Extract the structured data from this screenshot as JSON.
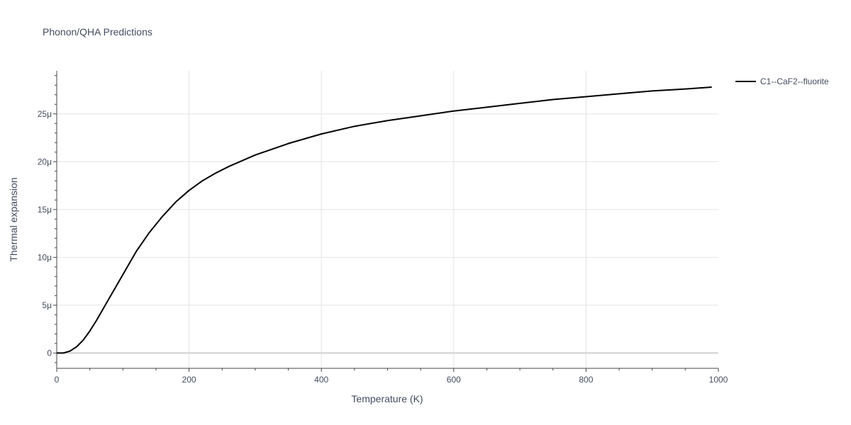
{
  "chart_data": {
    "type": "line",
    "title": "Phonon/QHA Predictions",
    "xlabel": "Temperature (K)",
    "ylabel": "Thermal expansion",
    "xlim": [
      0,
      1000
    ],
    "ylim": [
      -1.6e-06,
      2.95e-05
    ],
    "x_ticks": [
      0,
      200,
      400,
      600,
      800,
      1000
    ],
    "x_tick_labels": [
      "0",
      "200",
      "400",
      "600",
      "800",
      "1000"
    ],
    "y_ticks": [
      0,
      5e-06,
      1e-05,
      1.5e-05,
      2e-05,
      2.5e-05
    ],
    "y_tick_labels": [
      "0",
      "5μ",
      "10μ",
      "15μ",
      "20μ",
      "25μ"
    ],
    "grid": true,
    "legend_position": "top-right",
    "series": [
      {
        "name": "C1--CaF2--fluorite",
        "color": "#000000",
        "x": [
          0,
          10,
          20,
          30,
          40,
          50,
          60,
          70,
          80,
          90,
          100,
          120,
          140,
          160,
          180,
          200,
          220,
          240,
          260,
          280,
          300,
          350,
          400,
          450,
          500,
          550,
          600,
          650,
          700,
          750,
          800,
          850,
          900,
          950,
          990
        ],
        "y": [
          0,
          0.0,
          2e-07,
          6.5e-07,
          1.35e-06,
          2.3e-06,
          3.4e-06,
          4.6e-06,
          5.8e-06,
          7e-06,
          8.2e-06,
          1.06e-05,
          1.26e-05,
          1.43e-05,
          1.58e-05,
          1.7e-05,
          1.8e-05,
          1.88e-05,
          1.95e-05,
          2.01e-05,
          2.07e-05,
          2.19e-05,
          2.29e-05,
          2.37e-05,
          2.43e-05,
          2.48e-05,
          2.53e-05,
          2.57e-05,
          2.61e-05,
          2.65e-05,
          2.68e-05,
          2.71e-05,
          2.74e-05,
          2.76e-05,
          2.78e-05
        ]
      }
    ]
  }
}
